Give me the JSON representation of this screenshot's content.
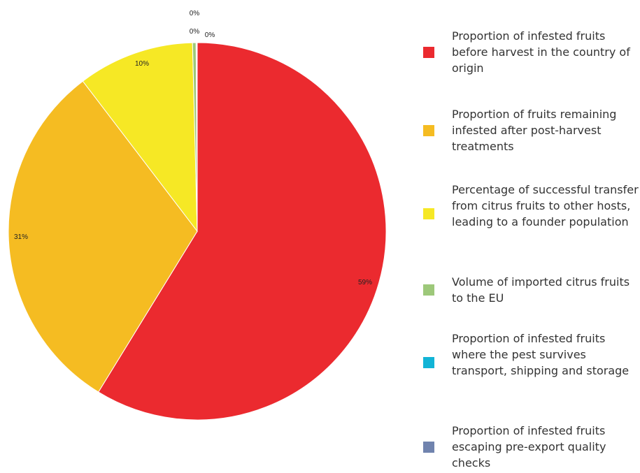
{
  "chart_data": {
    "type": "pie",
    "slices": [
      {
        "label": "Proportion of infested fruits before harvest in the country of origin",
        "value": 59,
        "display": "59%",
        "color": "#EB2A2F"
      },
      {
        "label": "Proportion of fruits remaining infested after post-harvest treatments",
        "value": 31,
        "display": "31%",
        "color": "#F5BC22"
      },
      {
        "label": "Percentage of successful transfer from citrus fruits to other hosts, leading to a founder population",
        "value": 10,
        "display": "10%",
        "color": "#F6E825"
      },
      {
        "label": "Volume of imported citrus fruits to the EU",
        "value": 0.3,
        "display": "0%",
        "color": "#9DC87A"
      },
      {
        "label": "Proportion of infested fruits where the pest survives transport, shipping and storage",
        "value": 0.05,
        "display": "0%",
        "color": "#12B4D6"
      },
      {
        "label": "Proportion of infested fruits escaping pre-export quality checks",
        "value": 0.05,
        "display": "0%",
        "color": "#7083AE"
      }
    ],
    "start_angle": "12 o'clock",
    "direction": "clockwise",
    "legend_position": "right"
  }
}
